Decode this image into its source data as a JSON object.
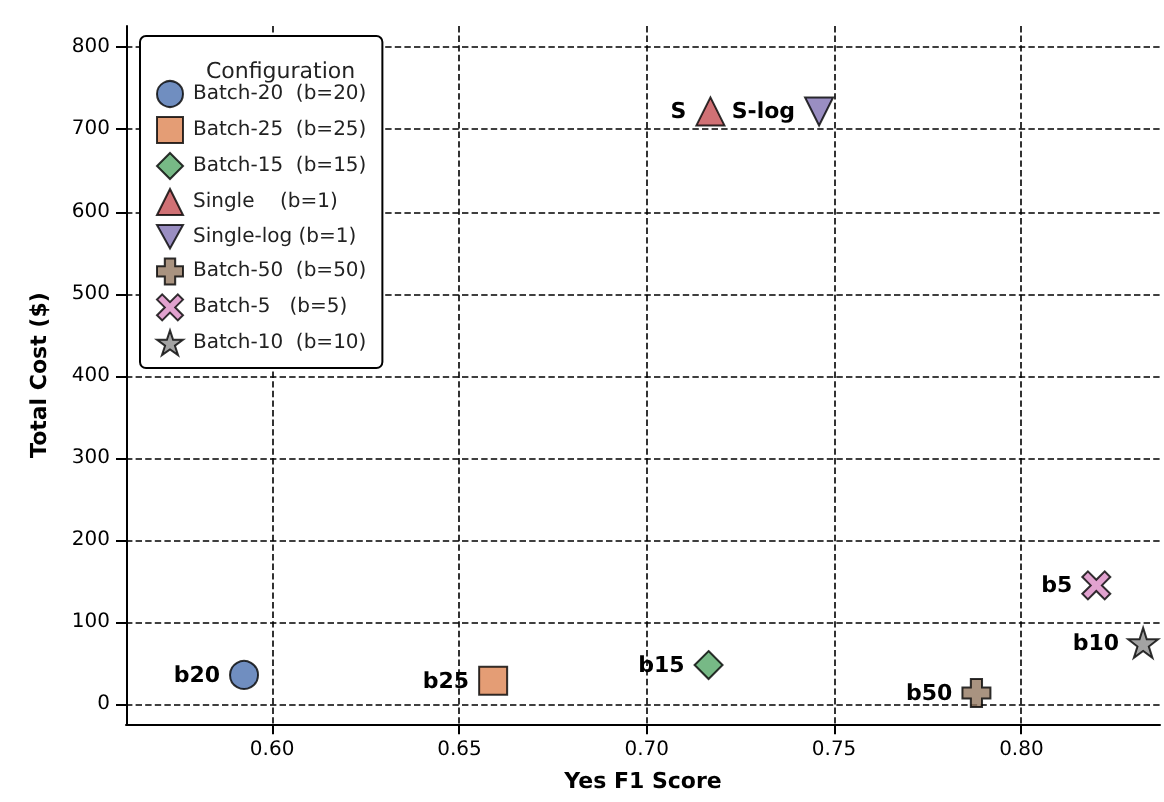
{
  "chart_data": {
    "type": "scatter",
    "xlabel": "Yes F1 Score",
    "ylabel": "Total Cost ($)",
    "legend_title": "Configuration",
    "xlim": [
      0.561,
      0.837
    ],
    "xticks": [
      {
        "value": 0.6,
        "label": "0.60"
      },
      0.65,
      {
        "value": 0.7,
        "label": "0.70"
      },
      0.75,
      {
        "value": 0.8,
        "label": "0.80"
      }
    ],
    "ylim": [
      -24,
      826
    ],
    "yticks": [
      0,
      100,
      200,
      300,
      400,
      500,
      600,
      700,
      800
    ],
    "grid": true,
    "legend": "top left",
    "series": [
      {
        "name": "Batch-20  (b=20)",
        "color": "#4c72b0",
        "marker": "circle",
        "x": [
          0.5925
        ],
        "values": [
          36
        ]
      },
      {
        "name": "Batch-25  (b=25)",
        "color": "#dd8452",
        "marker": "square",
        "x": [
          0.659
        ],
        "values": [
          29
        ]
      },
      {
        "name": "Batch-15  (b=15)",
        "color": "#55a868",
        "marker": "diamond",
        "x": [
          0.7165
        ],
        "values": [
          48
        ]
      },
      {
        "name": "Single    (b=1)",
        "color": "#c44e52",
        "marker": "triangle",
        "x": [
          0.717
        ],
        "values": [
          722
        ]
      },
      {
        "name": "Single-log (b=1)",
        "color": "#8172b3",
        "marker": "triangle-down",
        "x": [
          0.746
        ],
        "values": [
          722
        ]
      },
      {
        "name": "Batch-50  (b=50)",
        "color": "#937860",
        "marker": "plus",
        "x": [
          0.788
        ],
        "values": [
          14
        ]
      },
      {
        "name": "Batch-5   (b=5)",
        "color": "#da8bc3",
        "marker": "cross",
        "x": [
          0.82
        ],
        "values": [
          145
        ]
      },
      {
        "name": "Batch-10  (b=10)",
        "color": "#8c8c8c",
        "marker": "star",
        "x": [
          0.8325
        ],
        "values": [
          75
        ]
      }
    ],
    "annotations": [
      {
        "text": "b20",
        "x": 0.5925,
        "y": 36
      },
      {
        "text": "b25",
        "x": 0.659,
        "y": 29
      },
      {
        "text": "b15",
        "x": 0.7165,
        "y": 48
      },
      {
        "text": "S",
        "x": 0.717,
        "y": 722
      },
      {
        "text": "S-log",
        "x": 0.746,
        "y": 722
      },
      {
        "text": "b50",
        "x": 0.788,
        "y": 14
      },
      {
        "text": "b5",
        "x": 0.82,
        "y": 145
      },
      {
        "text": "b10",
        "x": 0.8325,
        "y": 75
      }
    ]
  }
}
